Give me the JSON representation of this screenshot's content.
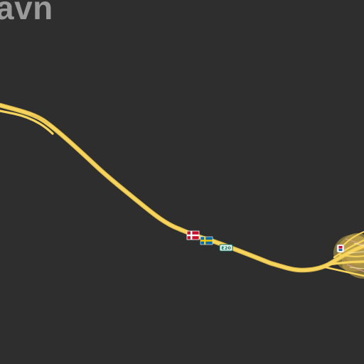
{
  "map": {
    "place_label": "avn",
    "road_shield": "E20",
    "colors": {
      "background": "#2e2e2e",
      "motorway": "#f7d55c",
      "motorway_casing": "#d9b64a",
      "label": "#9a9a9a",
      "shield_fill": "#e8f4f0",
      "shield_text": "#0a6b5a",
      "urban_area": "#9a8a4a"
    },
    "icons": [
      "denmark-flag-icon",
      "sweden-flag-icon",
      "toll-plaza-icon"
    ]
  }
}
